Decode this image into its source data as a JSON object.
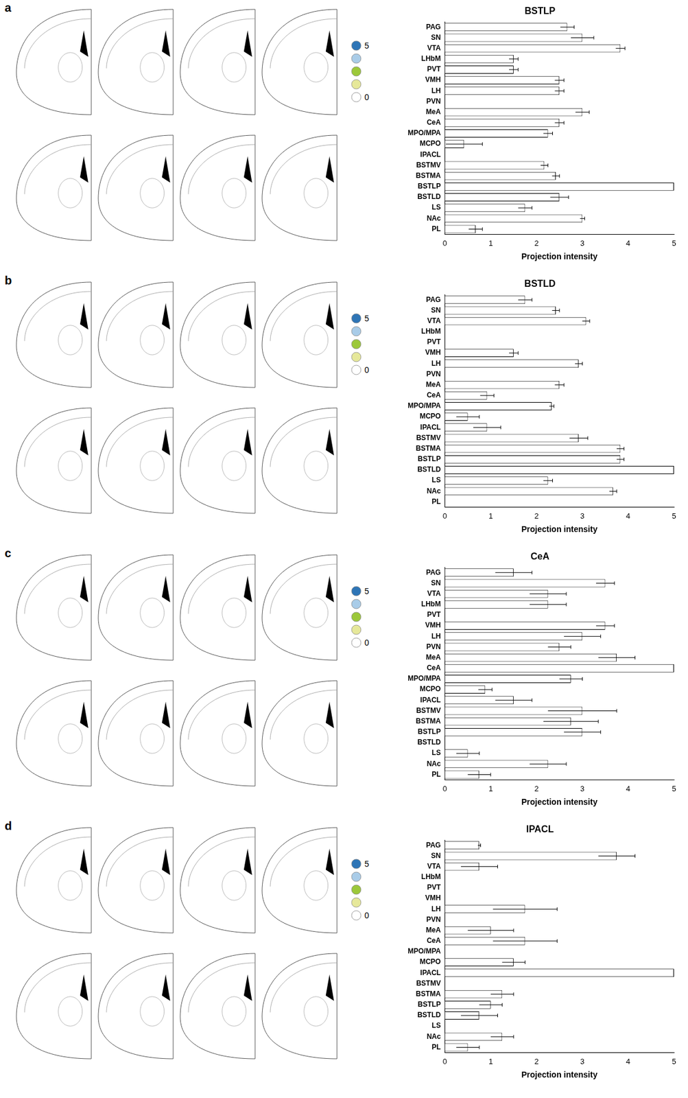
{
  "panel_labels": [
    "a",
    "b",
    "c",
    "d"
  ],
  "section_legend": {
    "labels": [
      5,
      0
    ],
    "colors": [
      "#2e75b6",
      "#a9cce8",
      "#9cc83a",
      "#e6e89a",
      "#ffffff"
    ]
  },
  "chart_data": [
    {
      "type": "bar",
      "orientation": "horizontal",
      "title": "BSTLP",
      "x_label": "Projection intensity",
      "color": "#ffffff",
      "grid": false,
      "categories": [
        "PAG",
        "SN",
        "VTA",
        "LHbM",
        "PVT",
        "VMH",
        "LH",
        "PVN",
        "MeA",
        "CeA",
        "MPO/MPA",
        "MCPO",
        "IPACL",
        "BSTMV",
        "BSTMA",
        "BSTLP",
        "BSTLD",
        "LS",
        "NAc",
        "PL"
      ],
      "values": [
        2.67,
        3.0,
        3.83,
        1.5,
        1.5,
        2.5,
        2.5,
        0,
        3.0,
        2.5,
        2.25,
        0.42,
        0,
        2.17,
        2.42,
        5,
        2.5,
        1.75,
        3.0,
        0.67
      ],
      "errors": [
        0.15,
        0.25,
        0.1,
        0.1,
        0.1,
        0.1,
        0.1,
        0,
        0.15,
        0.1,
        0.1,
        0.4,
        0,
        0.08,
        0.08,
        0,
        0.2,
        0.15,
        0.05,
        0.15
      ],
      "xlim": [
        0,
        5
      ],
      "xticks": [
        0,
        1,
        2,
        3,
        4,
        5
      ]
    },
    {
      "type": "bar",
      "orientation": "horizontal",
      "title": "BSTLD",
      "x_label": "Projection intensity",
      "color": "#ffffff",
      "grid": false,
      "categories": [
        "PAG",
        "SN",
        "VTA",
        "LHbM",
        "PVT",
        "VMH",
        "LH",
        "PVN",
        "MeA",
        "CeA",
        "MPO/MPA",
        "MCPO",
        "IPACL",
        "BSTMV",
        "BSTMA",
        "BSTLP",
        "BSTLD",
        "LS",
        "NAc",
        "PL"
      ],
      "values": [
        1.75,
        2.42,
        3.08,
        0,
        0,
        1.5,
        2.92,
        0,
        2.5,
        0.92,
        2.33,
        0.5,
        0.92,
        2.92,
        3.83,
        3.83,
        5,
        2.25,
        3.67,
        0
      ],
      "errors": [
        0.15,
        0.08,
        0.08,
        0,
        0,
        0.1,
        0.08,
        0,
        0.1,
        0.15,
        0.05,
        0.25,
        0.3,
        0.2,
        0.08,
        0.08,
        0,
        0.1,
        0.08,
        0
      ],
      "xlim": [
        0,
        5
      ],
      "xticks": [
        0,
        1,
        2,
        3,
        4,
        5
      ]
    },
    {
      "type": "bar",
      "orientation": "horizontal",
      "title": "CeA",
      "x_label": "Projection intensity",
      "color": "#ffffff",
      "grid": false,
      "categories": [
        "PAG",
        "SN",
        "VTA",
        "LHbM",
        "PVT",
        "VMH",
        "LH",
        "PVN",
        "MeA",
        "CeA",
        "MPO/MPA",
        "MCPO",
        "IPACL",
        "BSTMV",
        "BSTMA",
        "BSTLP",
        "BSTLD",
        "LS",
        "NAc",
        "PL"
      ],
      "values": [
        1.5,
        3.5,
        2.25,
        2.25,
        0,
        3.5,
        3.0,
        2.5,
        3.75,
        5,
        2.75,
        0.88,
        1.5,
        3.0,
        2.75,
        3.0,
        0,
        0.5,
        2.25,
        0.75
      ],
      "errors": [
        0.4,
        0.2,
        0.4,
        0.4,
        0,
        0.2,
        0.4,
        0.25,
        0.4,
        0,
        0.25,
        0.15,
        0.4,
        0.75,
        0.6,
        0.4,
        0,
        0.25,
        0.4,
        0.25
      ],
      "xlim": [
        0,
        5
      ],
      "xticks": [
        0,
        1,
        2,
        3,
        4,
        5
      ]
    },
    {
      "type": "bar",
      "orientation": "horizontal",
      "title": "IPACL",
      "x_label": "Projection intensity",
      "color": "#ffffff",
      "grid": false,
      "categories": [
        "PAG",
        "SN",
        "VTA",
        "LHbM",
        "PVT",
        "VMH",
        "LH",
        "PVN",
        "MeA",
        "CeA",
        "MPO/MPA",
        "MCPO",
        "IPACL",
        "BSTMV",
        "BSTMA",
        "BSTLP",
        "BSTLD",
        "LS",
        "NAc",
        "PL"
      ],
      "values": [
        0.75,
        3.75,
        0.75,
        0,
        0,
        0,
        1.75,
        0,
        1.0,
        1.75,
        0,
        1.5,
        5,
        0,
        1.25,
        1.0,
        0.75,
        0,
        1.25,
        0.5
      ],
      "errors": [
        0.03,
        0.4,
        0.4,
        0,
        0,
        0,
        0.7,
        0,
        0.5,
        0.7,
        0,
        0.25,
        0,
        0,
        0.25,
        0.25,
        0.4,
        0,
        0.25,
        0.25
      ],
      "xlim": [
        0,
        5
      ],
      "xticks": [
        0,
        1,
        2,
        3,
        4,
        5
      ]
    }
  ]
}
